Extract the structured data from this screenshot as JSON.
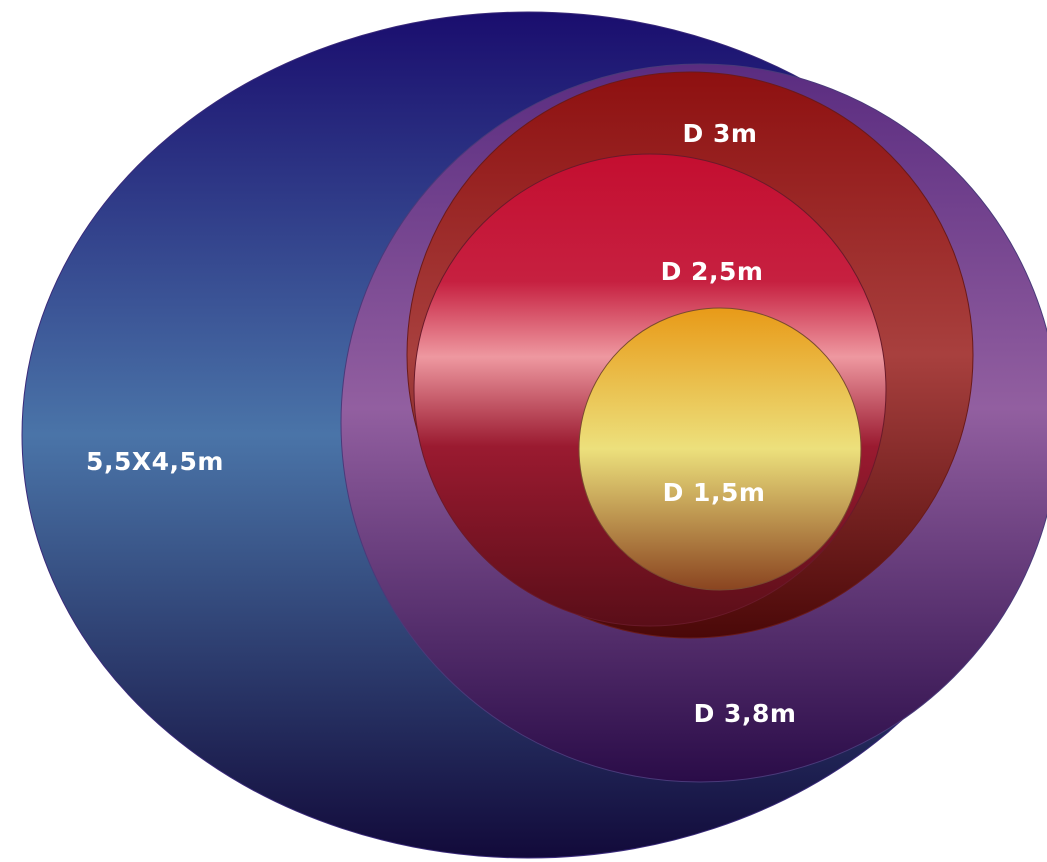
{
  "diagram": {
    "shapes": [
      {
        "key": "outer",
        "label": "5,5X4,5m",
        "colors": [
          "#1a0d6e",
          "#4a74a8",
          "#120a3a"
        ]
      },
      {
        "key": "d38",
        "label": "D 3,8m",
        "colors": [
          "#5a2c80",
          "#925fa0",
          "#2a0c48"
        ]
      },
      {
        "key": "d3",
        "label": "D 3m",
        "colors": [
          "#8e1010",
          "#a8403e",
          "#4a0808"
        ]
      },
      {
        "key": "d25",
        "label": "D 2,5m",
        "colors": [
          "#c40e30",
          "#ee98a0",
          "#5a0e18"
        ]
      },
      {
        "key": "d15",
        "label": "D 1,5m",
        "colors": [
          "#e89a18",
          "#ece07c",
          "#8a4420"
        ]
      }
    ]
  }
}
